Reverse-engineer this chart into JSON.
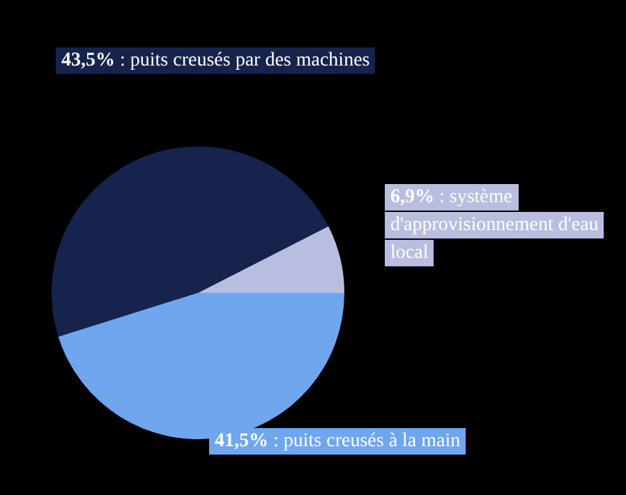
{
  "chart_data": {
    "type": "pie",
    "categories": [
      ": système d'approvisionnement d'eau local",
      ": puits creusés par des machines",
      ": puits creusés à la main"
    ],
    "values": [
      6.9,
      43.5,
      41.5
    ],
    "value_labels": [
      "6,9%",
      "43,5%",
      "41,5%"
    ],
    "colors": [
      "#b9bde0",
      "#15234d",
      "#6fa6ee"
    ]
  }
}
